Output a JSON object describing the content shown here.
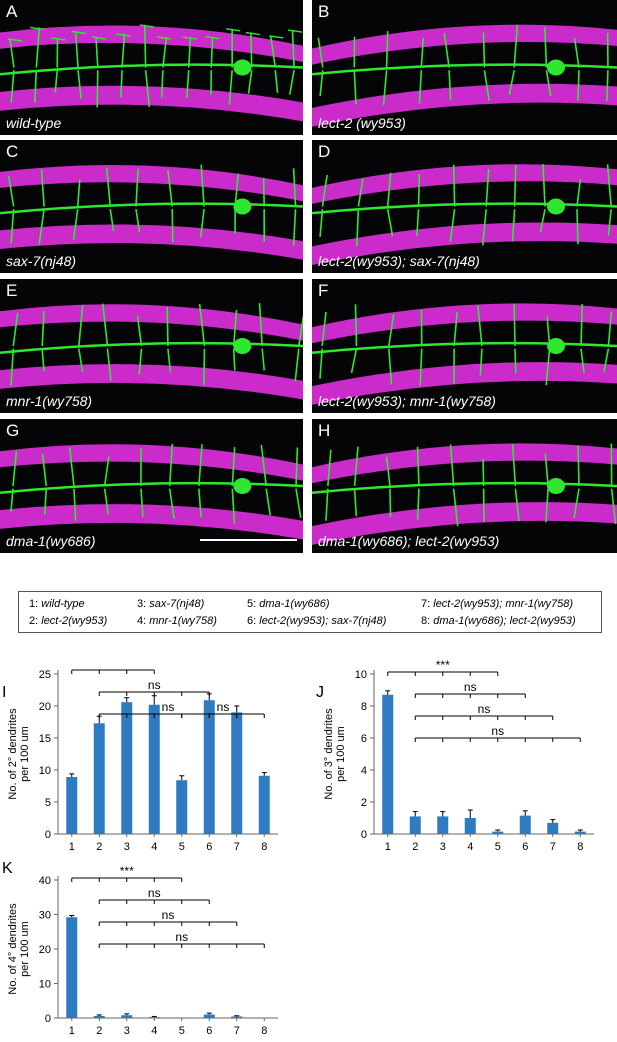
{
  "panels": [
    {
      "label": "A",
      "genotype": "wild-type"
    },
    {
      "label": "B",
      "genotype": "lect-2 (wy953)"
    },
    {
      "label": "C",
      "genotype": "sax-7(nj48)"
    },
    {
      "label": "D",
      "genotype": "lect-2(wy953); sax-7(nj48)"
    },
    {
      "label": "E",
      "genotype": "mnr-1(wy758)"
    },
    {
      "label": "F",
      "genotype": "lect-2(wy953); mnr-1(wy758)"
    },
    {
      "label": "G",
      "genotype": "dma-1(wy686)"
    },
    {
      "label": "H",
      "genotype": "dma-1(wy686); lect-2(wy953)"
    }
  ],
  "legend": [
    {
      "num": "1:",
      "name": "wild-type"
    },
    {
      "num": "2:",
      "name": "lect-2(wy953)"
    },
    {
      "num": "3:",
      "name": "sax-7(nj48)"
    },
    {
      "num": "4:",
      "name": "mnr-1(wy758)"
    },
    {
      "num": "5:",
      "name": "dma-1(wy686)"
    },
    {
      "num": "6:",
      "name": "lect-2(wy953); sax-7(nj48)"
    },
    {
      "num": "7:",
      "name": "lect-2(wy953); mnr-1(wy758)"
    },
    {
      "num": "8:",
      "name": "dma-1(wy686); lect-2(wy953)"
    }
  ],
  "colors": {
    "bar": "#2f7bc2",
    "magenta": "#e030e0",
    "green": "#2ee830"
  },
  "chart_data": [
    {
      "panel": "I",
      "type": "bar",
      "ylabel": "No. of 2° dendrites per 100 um",
      "categories": [
        "1",
        "2",
        "3",
        "4",
        "5",
        "6",
        "7",
        "8"
      ],
      "values": [
        8.9,
        17.3,
        20.6,
        20.2,
        8.4,
        20.9,
        19.0,
        9.1
      ],
      "errors": [
        0.5,
        1.1,
        0.7,
        1.4,
        0.7,
        1.0,
        1.0,
        0.5
      ],
      "ylim": [
        0,
        25
      ],
      "yticks": [
        "0",
        "5",
        "10",
        "15",
        "20",
        "25"
      ],
      "brackets": [
        {
          "from": 1,
          "to": 4,
          "label": ""
        },
        {
          "from": 2,
          "to": 6,
          "label": "ns"
        },
        {
          "from": 2,
          "to": 7,
          "label": "ns"
        },
        {
          "from": 5,
          "to": 8,
          "label": "ns"
        }
      ]
    },
    {
      "panel": "J",
      "type": "bar",
      "ylabel": "No. of 3° dendrites per 100 um",
      "categories": [
        "1",
        "2",
        "3",
        "4",
        "5",
        "6",
        "7",
        "8"
      ],
      "values": [
        8.7,
        1.1,
        1.1,
        1.0,
        0.15,
        1.15,
        0.7,
        0.15
      ],
      "errors": [
        0.25,
        0.3,
        0.3,
        0.5,
        0.1,
        0.3,
        0.2,
        0.1
      ],
      "ylim": [
        0,
        10
      ],
      "yticks": [
        "0",
        "2",
        "4",
        "6",
        "8",
        "10"
      ],
      "brackets": [
        {
          "from": 1,
          "to": 5,
          "label": "***"
        },
        {
          "from": 2,
          "to": 6,
          "label": "ns"
        },
        {
          "from": 2,
          "to": 7,
          "label": "ns"
        },
        {
          "from": 2,
          "to": 8,
          "label": "ns"
        }
      ]
    },
    {
      "panel": "K",
      "type": "bar",
      "ylabel": "No. of 4° dendrites per 100 um",
      "categories": [
        "1",
        "2",
        "3",
        "4",
        "5",
        "6",
        "7",
        "8"
      ],
      "values": [
        29.2,
        0.6,
        0.8,
        0.25,
        0,
        1.0,
        0.45,
        0
      ],
      "errors": [
        0.5,
        0.3,
        0.4,
        0.2,
        0,
        0.4,
        0.2,
        0
      ],
      "ylim": [
        0,
        40
      ],
      "yticks": [
        "0",
        "10",
        "20",
        "30",
        "40"
      ],
      "brackets": [
        {
          "from": 1,
          "to": 5,
          "label": "***"
        },
        {
          "from": 2,
          "to": 6,
          "label": "ns"
        },
        {
          "from": 2,
          "to": 7,
          "label": "ns"
        },
        {
          "from": 2,
          "to": 8,
          "label": "ns"
        }
      ]
    }
  ]
}
